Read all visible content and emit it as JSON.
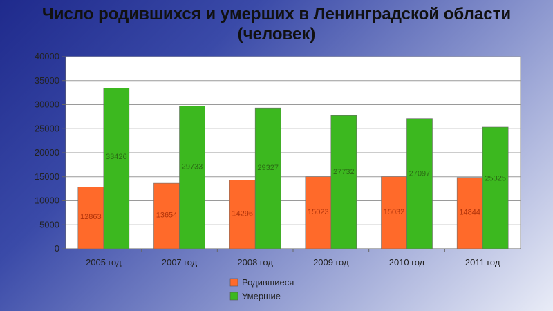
{
  "chart_data": {
    "type": "bar",
    "title_line1": "Число родившихся и умерших в Ленинградской области",
    "title_line2": "(человек)",
    "categories": [
      "2005 год",
      "2007 год",
      "2008 год",
      "2009 год",
      "2010 год",
      "2011 год"
    ],
    "series": [
      {
        "name": "Родившиеся",
        "color": "#ff6a2a",
        "values": [
          12863,
          13654,
          14296,
          15023,
          15032,
          14844
        ]
      },
      {
        "name": "Умершие",
        "color": "#3cb81f",
        "values": [
          33426,
          29733,
          29327,
          27732,
          27097,
          25325
        ]
      }
    ],
    "ylim": [
      0,
      40000
    ],
    "yticks": [
      0,
      5000,
      10000,
      15000,
      20000,
      25000,
      30000,
      35000,
      40000
    ],
    "grid": true,
    "legend_position": "bottom"
  }
}
